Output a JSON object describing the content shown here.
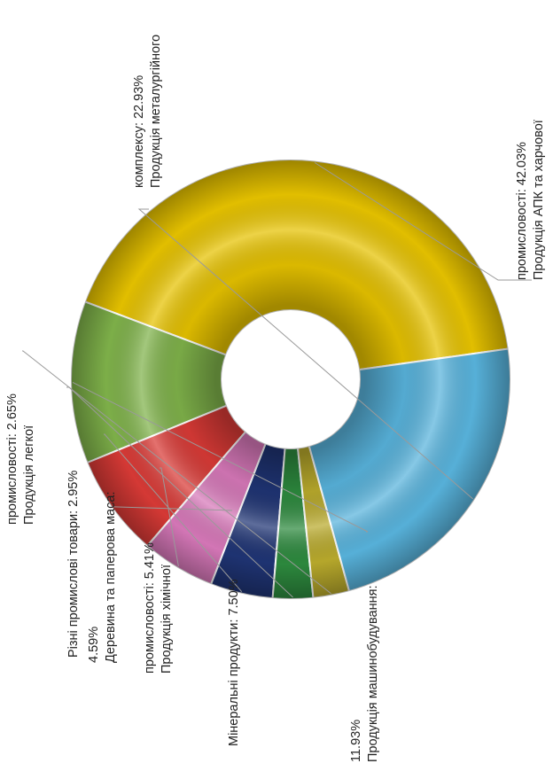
{
  "chart_data": {
    "type": "pie",
    "donut": true,
    "slices": [
      {
        "lines": [
          "Продукція АПК та харчової",
          "промисловості: 42.03%"
        ],
        "value": 42.03,
        "color": "#e6c200"
      },
      {
        "lines": [
          "Продукція машинобудування:",
          "11.93%"
        ],
        "value": 11.93,
        "color": "#7fb24a"
      },
      {
        "lines": [
          "Мінеральні продукти: 7.50%"
        ],
        "value": 7.5,
        "color": "#d93a36"
      },
      {
        "lines": [
          "Продукція хімічної",
          "промисловості: 5.41%"
        ],
        "value": 5.41,
        "color": "#d778b9"
      },
      {
        "lines": [
          "Деревина та паперова маса:",
          "4.59%"
        ],
        "value": 4.59,
        "color": "#1f3474"
      },
      {
        "lines": [
          "Різні промислові товари: 2.95%"
        ],
        "value": 2.95,
        "color": "#2d8a3e"
      },
      {
        "lines": [
          "Продукція легкої",
          "промисловості: 2.65%"
        ],
        "value": 2.65,
        "color": "#b9aa2c"
      },
      {
        "lines": [
          "Продукція металургійного",
          "комплексу: 22.93%"
        ],
        "value": 22.93,
        "color": "#58b3dc"
      }
    ]
  }
}
